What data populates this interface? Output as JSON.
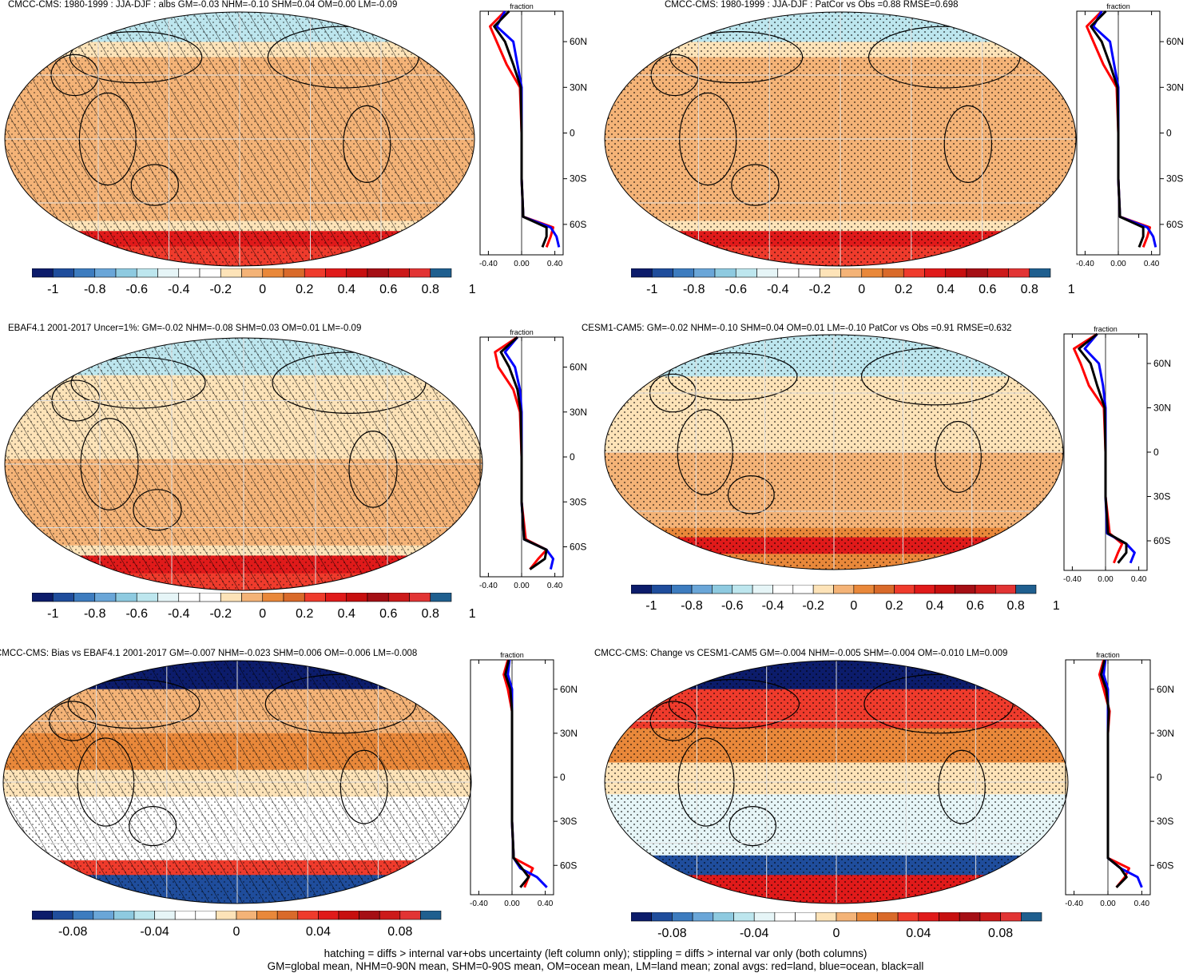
{
  "panels": [
    {
      "title": "CMCC-CMS: 1980-1999 : JJA-DJF : albs GM=-0.03 NHM=-0.10 SHM=0.04 OM=0.00 LM=-0.09",
      "pattern": "hatch",
      "kind": "model",
      "ticks": [
        "-1",
        "-0.8",
        "-0.6",
        "-0.4",
        "-0.2",
        "0",
        "0.2",
        "0.4",
        "0.6",
        "0.8",
        "1"
      ]
    },
    {
      "title": "CMCC-CMS: 1980-1999 : JJA-DJF : PatCor vs Obs =0.88 RMSE=0.698",
      "pattern": "stipple",
      "kind": "model",
      "ticks": [
        "-1",
        "-0.8",
        "-0.6",
        "-0.4",
        "-0.2",
        "0",
        "0.2",
        "0.4",
        "0.6",
        "0.8",
        "1"
      ]
    },
    {
      "title": "EBAF4.1 2001-2017 Uncer=1%: GM=-0.02 NHM=-0.08 SHM=0.03 OM=0.01 LM=-0.09",
      "pattern": "hatch",
      "kind": "obs",
      "ticks": [
        "-1",
        "-0.8",
        "-0.6",
        "-0.4",
        "-0.2",
        "0",
        "0.2",
        "0.4",
        "0.6",
        "0.8",
        "1"
      ]
    },
    {
      "title": "CESM1-CAM5: GM=-0.02 NHM=-0.10 SHM=0.04 OM=0.01 LM=-0.10 PatCor vs Obs =0.91 RMSE=0.632",
      "pattern": "stipple",
      "kind": "cesm",
      "ticks": [
        "-1",
        "-0.8",
        "-0.6",
        "-0.4",
        "-0.2",
        "0",
        "0.2",
        "0.4",
        "0.6",
        "0.8",
        "1"
      ]
    },
    {
      "title": "CMCC-CMS: Bias vs EBAF4.1 2001-2017 GM=-0.007 NHM=-0.023 SHM=0.006 OM=-0.006 LM=-0.008",
      "pattern": "hatch",
      "kind": "bias",
      "ticks": [
        "-0.08",
        "-0.04",
        "0",
        "0.04",
        "0.08"
      ]
    },
    {
      "title": "CMCC-CMS: Change vs CESM1-CAM5 GM=-0.004 NHM=-0.005 SHM=-0.004 OM=-0.010 LM=0.009",
      "pattern": "stipple",
      "kind": "change",
      "ticks": [
        "-0.08",
        "-0.04",
        "0",
        "0.04",
        "0.08"
      ]
    }
  ],
  "profile_axis": {
    "title": "fraction",
    "xticks": [
      "-0.40",
      "0.00",
      "0.40"
    ],
    "yticks": [
      "60N",
      "30N",
      "0",
      "30S",
      "60S"
    ]
  },
  "palette": [
    "#0c1c6b",
    "#1f4d9c",
    "#3d7cbf",
    "#6aa6d8",
    "#8ecae0",
    "#bde6ee",
    "#e6f5f7",
    "#ffffff",
    "#ffffff",
    "#fde3b8",
    "#f4b377",
    "#e9883a",
    "#d96a2a",
    "#ef3b2c",
    "#e01a1a",
    "#c70f0f",
    "#a50f15",
    "#cc1a1a",
    "#e23434",
    "#1f5f8f"
  ],
  "series_colors": {
    "land": "#ff0000",
    "ocean": "#0000ff",
    "all": "#000000"
  },
  "footer": {
    "line1": "hatching = diffs > internal var+obs uncertainty (left column only); stippling = diffs > internal var only (both columns)",
    "line2": "GM=global mean, NHM=0-90N mean, SHM=0-90S mean, OM=ocean mean, LM=land mean; zonal avgs: red=land, blue=ocean, black=all"
  },
  "chart_data": [
    {
      "type": "heatmap",
      "title": "CMCC-CMS: 1980-1999 : JJA-DJF : albs GM=-0.03 NHM=-0.10 SHM=0.04 OM=0.00 LM=-0.09",
      "colorbar_range": [
        -1,
        1
      ],
      "zonal_profile": {
        "lat": [
          80,
          70,
          60,
          45,
          30,
          0,
          -30,
          -55,
          -62,
          -68,
          -75
        ],
        "land": [
          -0.2,
          -0.38,
          -0.3,
          -0.18,
          -0.02,
          0.0,
          0.0,
          0.02,
          0.38,
          0.35,
          0.3
        ],
        "ocean": [
          -0.2,
          -0.3,
          -0.1,
          -0.05,
          0.0,
          0.0,
          0.0,
          0.02,
          0.35,
          0.42,
          0.45
        ],
        "all": [
          -0.15,
          -0.33,
          -0.2,
          -0.1,
          -0.01,
          0.0,
          0.0,
          0.02,
          0.3,
          0.3,
          0.25
        ],
        "xlim": [
          -0.5,
          0.5
        ]
      }
    },
    {
      "type": "heatmap",
      "title": "CMCC-CMS: 1980-1999 : JJA-DJF : PatCor vs Obs =0.88 RMSE=0.698",
      "colorbar_range": [
        -1,
        1
      ],
      "zonal_profile": {
        "lat": [
          80,
          70,
          60,
          45,
          30,
          0,
          -30,
          -55,
          -62,
          -68,
          -75
        ],
        "land": [
          -0.2,
          -0.38,
          -0.3,
          -0.18,
          -0.02,
          0.0,
          0.0,
          0.02,
          0.38,
          0.35,
          0.3
        ],
        "ocean": [
          -0.2,
          -0.3,
          -0.1,
          -0.05,
          0.0,
          0.0,
          0.0,
          0.02,
          0.35,
          0.42,
          0.45
        ],
        "all": [
          -0.15,
          -0.33,
          -0.2,
          -0.1,
          -0.01,
          0.0,
          0.0,
          0.02,
          0.3,
          0.3,
          0.25
        ],
        "xlim": [
          -0.5,
          0.5
        ]
      }
    },
    {
      "type": "heatmap",
      "title": "EBAF4.1 2001-2017 Uncer=1%: GM=-0.02 NHM=-0.08 SHM=0.03 OM=0.01 LM=-0.09",
      "colorbar_range": [
        -1,
        1
      ],
      "zonal_profile": {
        "lat": [
          80,
          70,
          60,
          45,
          30,
          0,
          -30,
          -55,
          -62,
          -68,
          -75
        ],
        "land": [
          -0.05,
          -0.32,
          -0.28,
          -0.1,
          -0.02,
          0.0,
          0.0,
          0.05,
          0.3,
          0.2,
          0.1
        ],
        "ocean": [
          -0.05,
          -0.2,
          -0.08,
          -0.02,
          0.0,
          0.0,
          0.0,
          0.03,
          0.3,
          0.38,
          0.35
        ],
        "all": [
          -0.05,
          -0.25,
          -0.15,
          -0.05,
          -0.01,
          0.0,
          0.0,
          0.03,
          0.3,
          0.28,
          0.1
        ],
        "xlim": [
          -0.5,
          0.5
        ]
      }
    },
    {
      "type": "heatmap",
      "title": "CESM1-CAM5: GM=-0.02 NHM=-0.10 SHM=0.04 OM=0.01 LM=-0.10 PatCor vs Obs =0.91 RMSE=0.632",
      "colorbar_range": [
        -1,
        1
      ],
      "zonal_profile": {
        "lat": [
          80,
          70,
          60,
          45,
          30,
          0,
          -30,
          -55,
          -62,
          -68,
          -75
        ],
        "land": [
          -0.1,
          -0.38,
          -0.3,
          -0.2,
          -0.02,
          0.0,
          0.0,
          0.05,
          0.2,
          0.15,
          0.1
        ],
        "ocean": [
          -0.1,
          -0.25,
          -0.08,
          -0.03,
          0.0,
          0.0,
          0.0,
          0.02,
          0.25,
          0.35,
          0.3
        ],
        "all": [
          -0.1,
          -0.32,
          -0.18,
          -0.1,
          -0.01,
          0.0,
          0.0,
          0.03,
          0.25,
          0.25,
          0.15
        ],
        "xlim": [
          -0.5,
          0.5
        ]
      }
    },
    {
      "type": "heatmap",
      "title": "CMCC-CMS: Bias vs EBAF4.1 2001-2017 GM=-0.007 NHM=-0.023 SHM=0.006 OM=-0.006 LM=-0.008",
      "colorbar_range": [
        -0.1,
        0.1
      ],
      "zonal_profile": {
        "lat": [
          80,
          70,
          60,
          45,
          30,
          0,
          -30,
          -55,
          -62,
          -68,
          -75
        ],
        "land": [
          -0.05,
          -0.1,
          -0.05,
          0.0,
          0.0,
          0.0,
          0.0,
          0.02,
          0.25,
          0.2,
          0.15
        ],
        "ocean": [
          -0.03,
          -0.05,
          0.0,
          0.0,
          0.0,
          0.0,
          0.0,
          0.02,
          0.1,
          0.3,
          0.42
        ],
        "all": [
          -0.04,
          -0.08,
          -0.02,
          0.0,
          0.0,
          0.0,
          0.0,
          0.02,
          0.12,
          0.2,
          0.1
        ],
        "xlim": [
          -0.5,
          0.5
        ]
      }
    },
    {
      "type": "heatmap",
      "title": "CMCC-CMS: Change vs CESM1-CAM5 GM=-0.004 NHM=-0.005 SHM=-0.004 OM=-0.010 LM=0.009",
      "colorbar_range": [
        -0.1,
        0.1
      ],
      "zonal_profile": {
        "lat": [
          80,
          70,
          60,
          45,
          30,
          0,
          -30,
          -55,
          -62,
          -68,
          -75
        ],
        "land": [
          -0.05,
          -0.1,
          -0.05,
          0.02,
          0.0,
          0.0,
          0.0,
          0.0,
          0.25,
          0.2,
          0.1
        ],
        "ocean": [
          -0.03,
          -0.05,
          0.0,
          0.0,
          0.0,
          0.0,
          0.0,
          0.0,
          0.15,
          0.35,
          0.4
        ],
        "all": [
          -0.04,
          -0.08,
          -0.02,
          0.01,
          0.0,
          0.0,
          0.0,
          0.0,
          0.15,
          0.22,
          0.1
        ],
        "xlim": [
          -0.5,
          0.5
        ]
      }
    }
  ]
}
